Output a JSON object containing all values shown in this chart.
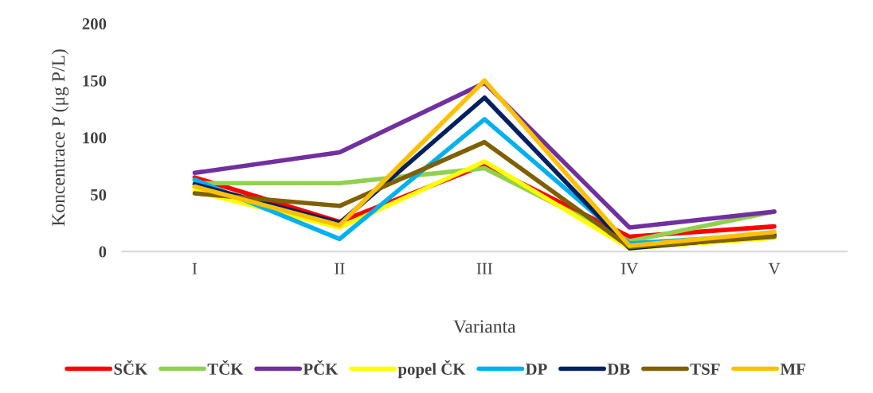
{
  "chart_data": {
    "type": "line",
    "xlabel": "Varianta",
    "ylabel": "Koncentrace P (μg P/L)",
    "categories": [
      "I",
      "II",
      "III",
      "IV",
      "V"
    ],
    "series": [
      {
        "name": "SČK",
        "color": "#ff0000",
        "values": [
          65,
          26,
          76,
          13,
          22
        ]
      },
      {
        "name": "TČK",
        "color": "#92d050",
        "values": [
          60,
          60,
          73,
          9,
          35
        ]
      },
      {
        "name": "PČK",
        "color": "#7030a0",
        "values": [
          69,
          87,
          148,
          21,
          35
        ]
      },
      {
        "name": "popel ČK",
        "color": "#ffff00",
        "values": [
          53,
          21,
          79,
          3,
          12
        ]
      },
      {
        "name": "DP",
        "color": "#00b0f0",
        "values": [
          63,
          11,
          116,
          7,
          15
        ]
      },
      {
        "name": "DB",
        "color": "#002060",
        "values": [
          59,
          25,
          135,
          3,
          14
        ]
      },
      {
        "name": "TSF",
        "color": "#7f6000",
        "values": [
          51,
          40,
          96,
          4,
          13
        ]
      },
      {
        "name": "MF",
        "color": "#ffc000",
        "values": [
          57,
          23,
          150,
          5,
          17
        ]
      }
    ],
    "ylim": [
      0,
      200
    ],
    "yticks": [
      0,
      50,
      100,
      150,
      200
    ],
    "grid": false,
    "legend": "bottom",
    "marker": "none",
    "line_style": "solid"
  }
}
